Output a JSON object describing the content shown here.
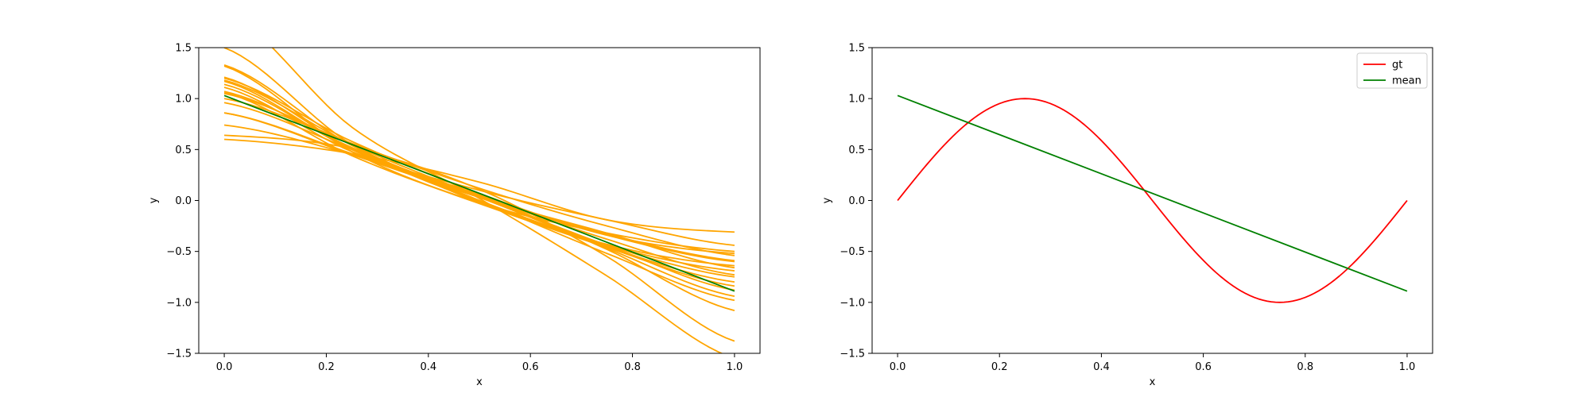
{
  "chart_data": [
    {
      "type": "line",
      "xlabel": "x",
      "ylabel": "y",
      "xlim": [
        -0.05,
        1.05
      ],
      "ylim": [
        -1.5,
        1.5
      ],
      "xticks": [
        0.0,
        0.2,
        0.4,
        0.6,
        0.8,
        1.0
      ],
      "yticks": [
        -1.5,
        -1.0,
        -0.5,
        0.0,
        0.5,
        1.0,
        1.5
      ],
      "xtick_labels": [
        "0.0",
        "0.2",
        "0.4",
        "0.6",
        "0.8",
        "1.0"
      ],
      "ytick_labels": [
        "−1.5",
        "−1.0",
        "−0.5",
        "0.0",
        "0.5",
        "1.0",
        "1.5"
      ],
      "grid": false,
      "legend": null,
      "series": [
        {
          "color": "#ffa500",
          "x": [
            0,
            0.25,
            0.5,
            0.75,
            1.0
          ],
          "y": [
            1.5,
            0.55,
            0.05,
            -0.38,
            -0.73
          ]
        },
        {
          "color": "#ffa500",
          "x": [
            0,
            0.25,
            0.5,
            0.75,
            1.0
          ],
          "y": [
            1.18,
            0.55,
            0.04,
            -0.44,
            -0.88
          ]
        },
        {
          "color": "#ffa500",
          "x": [
            0,
            0.25,
            0.5,
            0.75,
            1.0
          ],
          "y": [
            0.74,
            0.45,
            0.05,
            -0.48,
            -1.08
          ]
        },
        {
          "color": "#ffa500",
          "x": [
            0,
            0.25,
            0.5,
            0.75,
            1.0
          ],
          "y": [
            1.14,
            0.5,
            0.0,
            -0.44,
            -0.75
          ]
        },
        {
          "color": "#ffa500",
          "x": [
            0,
            0.25,
            0.5,
            0.75,
            1.0
          ],
          "y": [
            0.86,
            0.45,
            0.03,
            -0.33,
            -0.59
          ]
        },
        {
          "color": "#ffa500",
          "x": [
            0,
            0.25,
            0.5,
            0.75,
            1.0
          ],
          "y": [
            1.2,
            0.58,
            0.07,
            -0.34,
            -0.52
          ]
        },
        {
          "color": "#ffa500",
          "x": [
            0,
            0.25,
            0.5,
            0.75,
            1.0
          ],
          "y": [
            0.64,
            0.51,
            0.11,
            -0.55,
            -1.38
          ]
        },
        {
          "color": "#ffa500",
          "x": [
            0,
            0.25,
            0.5,
            0.75,
            1.0
          ],
          "y": [
            1.11,
            0.48,
            0.1,
            -0.19,
            -0.44
          ]
        },
        {
          "color": "#ffa500",
          "x": [
            0,
            0.25,
            0.5,
            0.75,
            1.0
          ],
          "y": [
            1.32,
            0.48,
            -0.02,
            -0.32,
            -0.5
          ]
        },
        {
          "color": "#ffa500",
          "x": [
            0,
            0.25,
            0.5,
            0.75,
            1.0
          ],
          "y": [
            0.86,
            0.46,
            0.03,
            -0.47,
            -0.94
          ]
        },
        {
          "color": "#ffa500",
          "x": [
            0,
            0.25,
            0.5,
            0.75,
            1.0
          ],
          "y": [
            1.05,
            0.56,
            0.12,
            -0.25,
            -0.54
          ]
        },
        {
          "color": "#ffa500",
          "x": [
            0,
            0.25,
            0.5,
            0.75,
            1.0
          ],
          "y": [
            0.6,
            0.46,
            0.18,
            -0.19,
            -0.31
          ]
        },
        {
          "color": "#ffa500",
          "x": [
            0,
            0.25,
            0.5,
            0.75,
            1.0
          ],
          "y": [
            1.21,
            0.51,
            -0.01,
            -0.43,
            -0.64
          ]
        },
        {
          "color": "#ffa500",
          "x": [
            0,
            0.25,
            0.5,
            0.75,
            1.0
          ],
          "y": [
            1.06,
            0.44,
            -0.03,
            -0.44,
            -0.69
          ]
        },
        {
          "color": "#ffa500",
          "x": [
            0,
            0.25,
            0.5,
            0.75,
            1.0
          ],
          "y": [
            1.17,
            0.5,
            0.04,
            -0.34,
            -0.6
          ]
        },
        {
          "color": "#ffa500",
          "x": [
            0,
            0.25,
            0.5,
            0.75,
            1.0
          ],
          "y": [
            1.33,
            0.54,
            0.04,
            -0.32,
            -0.66
          ]
        },
        {
          "color": "#ffa500",
          "x": [
            0,
            0.25,
            0.5,
            0.75,
            1.0
          ],
          "y": [
            1.87,
            0.72,
            0.02,
            -0.74,
            -1.55
          ]
        },
        {
          "color": "#ffa500",
          "x": [
            0,
            0.25,
            0.5,
            0.75,
            1.0
          ],
          "y": [
            1.0,
            0.56,
            0.06,
            -0.45,
            -0.8
          ]
        },
        {
          "color": "#ffa500",
          "x": [
            0,
            0.25,
            0.5,
            0.75,
            1.0
          ],
          "y": [
            0.96,
            0.5,
            0.0,
            -0.52,
            -0.98
          ]
        },
        {
          "color": "#ffa500",
          "x": [
            0,
            0.25,
            0.5,
            0.75,
            1.0
          ],
          "y": [
            1.07,
            0.52,
            -0.02,
            -0.46,
            -0.84
          ]
        },
        {
          "color": "#008000",
          "x": [
            0,
            1.0
          ],
          "y": [
            1.03,
            -0.89
          ]
        }
      ]
    },
    {
      "type": "line",
      "xlabel": "x",
      "ylabel": "y",
      "xlim": [
        -0.05,
        1.05
      ],
      "ylim": [
        -1.5,
        1.5
      ],
      "xticks": [
        0.0,
        0.2,
        0.4,
        0.6,
        0.8,
        1.0
      ],
      "yticks": [
        -1.5,
        -1.0,
        -0.5,
        0.0,
        0.5,
        1.0,
        1.5
      ],
      "xtick_labels": [
        "0.0",
        "0.2",
        "0.4",
        "0.6",
        "0.8",
        "1.0"
      ],
      "ytick_labels": [
        "−1.5",
        "−1.0",
        "−0.5",
        "0.0",
        "0.5",
        "1.0",
        "1.5"
      ],
      "grid": false,
      "legend": "top-right",
      "series": [
        {
          "name": "gt",
          "color": "#ff0000",
          "function": "sin(2*pi*x)",
          "x_range": [
            0,
            1
          ]
        },
        {
          "name": "mean",
          "color": "#008000",
          "x": [
            0,
            1.0
          ],
          "y": [
            1.03,
            -0.89
          ]
        }
      ]
    }
  ]
}
